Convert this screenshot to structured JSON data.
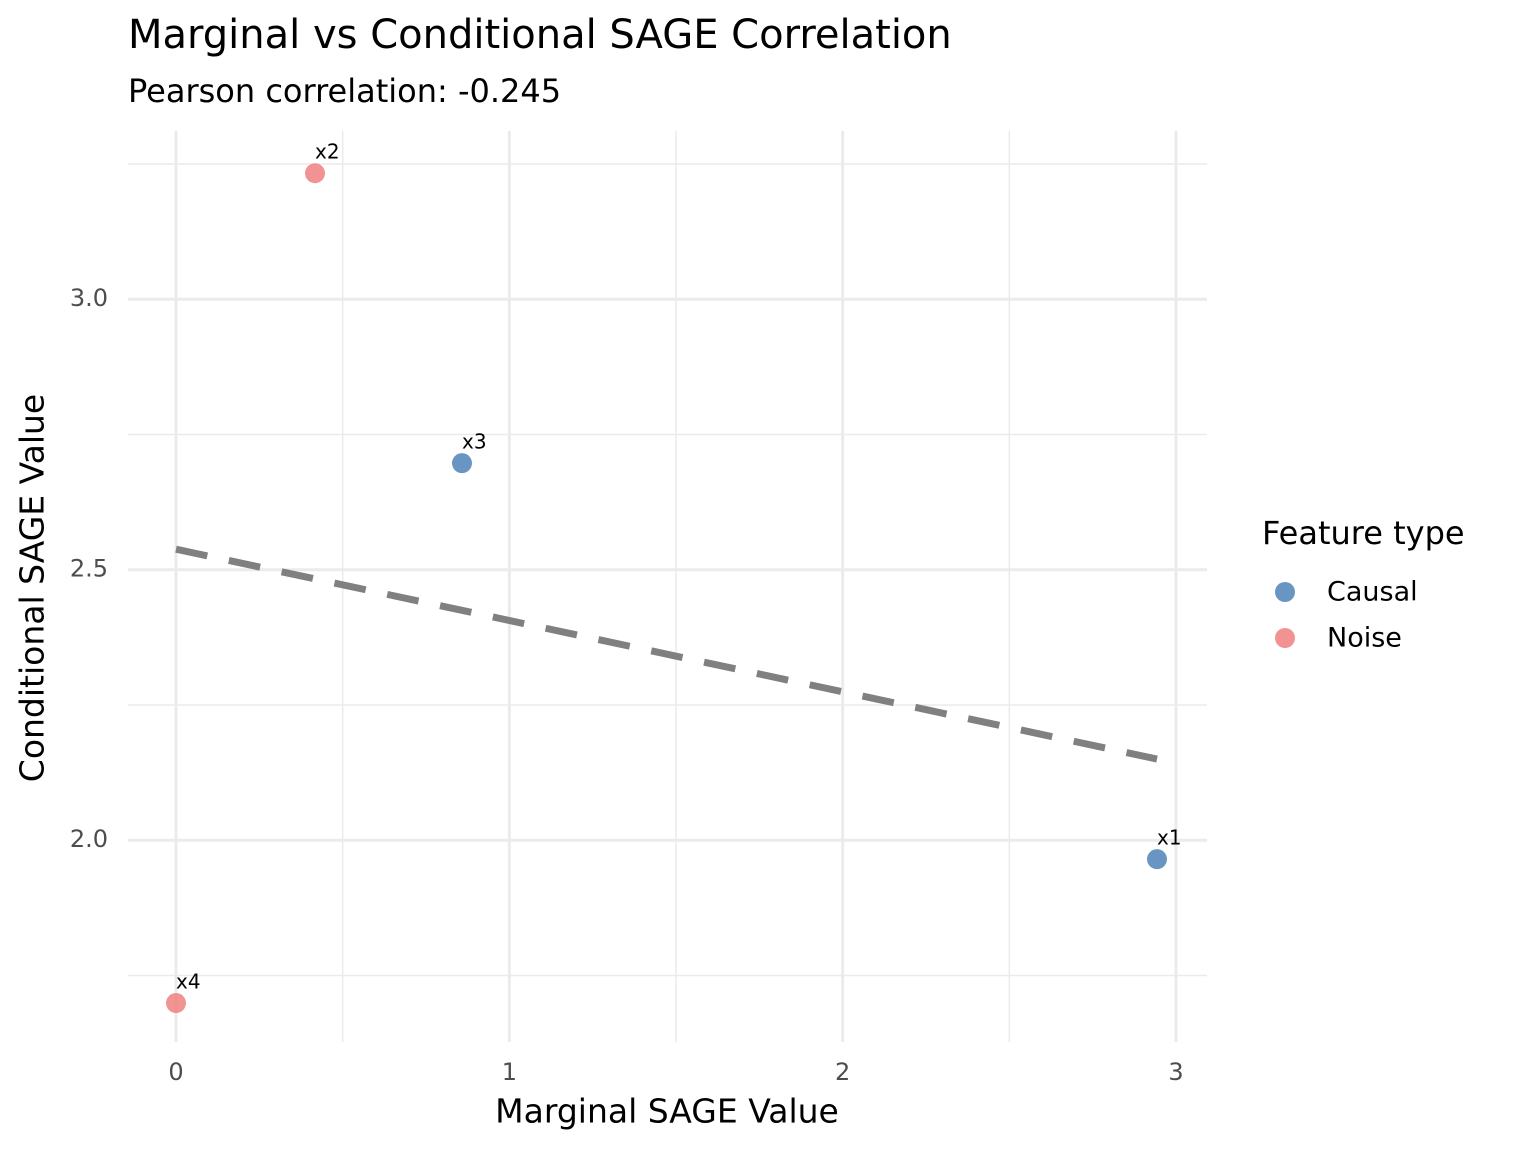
{
  "chart_data": {
    "type": "scatter",
    "title": "Marginal vs Conditional SAGE Correlation",
    "subtitle": "Pearson correlation: -0.245",
    "x_label": "Marginal SAGE Value",
    "y_label": "Conditional SAGE Value",
    "legend_title": "Feature type",
    "legend_position": "right",
    "grid": true,
    "xlim": [
      -0.144,
      3.093
    ],
    "ylim": [
      1.627,
      3.311
    ],
    "xticks": [
      0,
      1,
      2,
      3
    ],
    "yticks": [
      {
        "value": 2,
        "label": "2.0"
      },
      2.5,
      {
        "value": 3,
        "label": "3.0"
      }
    ],
    "series": [
      {
        "name": "Causal",
        "color": "#4f82b8",
        "x": [
          0.858,
          2.943
        ],
        "values": [
          2.697,
          1.965
        ],
        "labels": [
          "x3",
          "x1"
        ]
      },
      {
        "name": "Noise",
        "color": "#f08080",
        "x": [
          0.417,
          0.0
        ],
        "values": [
          3.233,
          1.699
        ],
        "labels": [
          "x2",
          "x4"
        ]
      }
    ],
    "trend_line": {
      "color": "#808080",
      "x": [
        0,
        2.943
      ],
      "values": [
        2.538,
        2.15
      ]
    }
  }
}
